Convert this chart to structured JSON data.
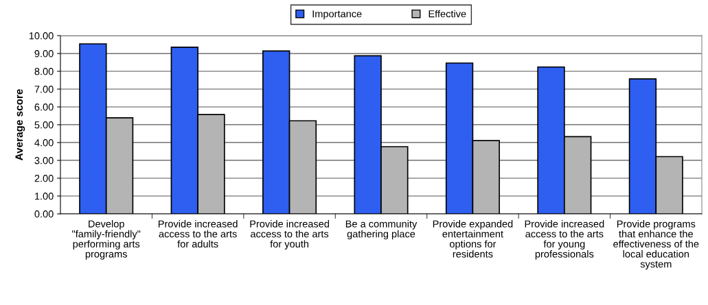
{
  "chart_data": {
    "type": "bar",
    "categories": [
      "Develop \"family-friendly\" performing arts programs",
      "Provide increased access to the arts for adults",
      "Provide increased access to the arts for youth",
      "Be a community gathering place",
      "Provide expanded entertainment options for residents",
      "Provide increased access to the arts for young professionals",
      "Provide programs that enhance the effectiveness of the local education system"
    ],
    "series": [
      {
        "name": "Importance",
        "color": "#2f5ff0",
        "values": [
          9.54,
          9.35,
          9.14,
          8.87,
          8.46,
          8.24,
          7.57
        ]
      },
      {
        "name": "Effective",
        "color": "#b4b4b4",
        "values": [
          5.39,
          5.57,
          5.22,
          3.77,
          4.11,
          4.33,
          3.21
        ]
      }
    ],
    "ylabel": "Average score",
    "ylim": [
      0,
      10
    ],
    "yticks": [
      {
        "value": 0,
        "label": "0.00"
      },
      {
        "value": 1,
        "label": "1.00"
      },
      {
        "value": 2,
        "label": "2.00"
      },
      {
        "value": 3,
        "label": "3.00"
      },
      {
        "value": 4,
        "label": "4.00"
      },
      {
        "value": 5,
        "label": "5.00"
      },
      {
        "value": 6,
        "label": "6.00"
      },
      {
        "value": 7,
        "label": "7.00"
      },
      {
        "value": 8,
        "label": "8.00"
      },
      {
        "value": 9,
        "label": "9.00"
      },
      {
        "value": 10,
        "label": "10.00"
      }
    ],
    "grid": "y",
    "legend": "top"
  }
}
